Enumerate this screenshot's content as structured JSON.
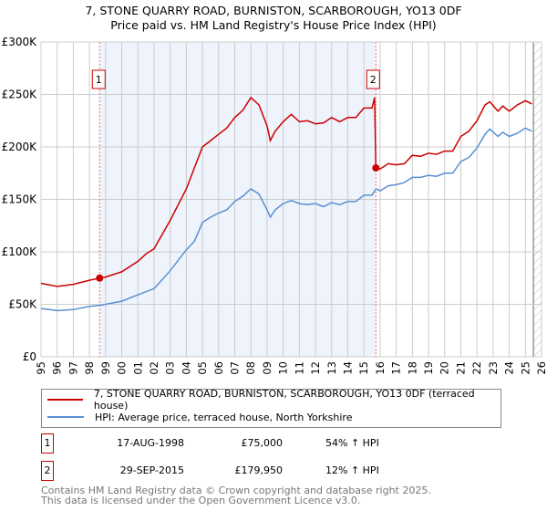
{
  "chart_data": {
    "type": "line",
    "title": "7, STONE QUARRY ROAD, BURNISTON, SCARBOROUGH, YO13 0DF",
    "subtitle": "Price paid vs. HM Land Registry's House Price Index (HPI)",
    "xlim": [
      1995,
      2026
    ],
    "ylim": [
      0,
      300000
    ],
    "x_ticks": [
      "1995",
      "1996",
      "1997",
      "1998",
      "1999",
      "2000",
      "2001",
      "2002",
      "2003",
      "2004",
      "2005",
      "2006",
      "2007",
      "2008",
      "2009",
      "2010",
      "2011",
      "2012",
      "2013",
      "2014",
      "2015",
      "2016",
      "2017",
      "2018",
      "2019",
      "2020",
      "2021",
      "2022",
      "2023",
      "2024",
      "2025",
      "2026"
    ],
    "y_ticks": [
      {
        "v": 0,
        "label": "£0"
      },
      {
        "v": 50000,
        "label": "£50K"
      },
      {
        "v": 100000,
        "label": "£100K"
      },
      {
        "v": 150000,
        "label": "£150K"
      },
      {
        "v": 200000,
        "label": "£200K"
      },
      {
        "v": 250000,
        "label": "£250K"
      },
      {
        "v": 300000,
        "label": "£300K"
      }
    ],
    "grid": true,
    "shaded_range": [
      1998.63,
      2015.74
    ],
    "hatched_from": 2025.5,
    "series": [
      {
        "name": "7, STONE QUARRY ROAD, BURNISTON, SCARBOROUGH, YO13 0DF (terraced house)",
        "color": "#cc0000",
        "x": [
          1995,
          1996,
          1997,
          1998,
          1998.63,
          1999,
          2000,
          2001,
          2001.5,
          2002,
          2003,
          2004,
          2004.5,
          2005,
          2005.5,
          2006,
          2006.5,
          2007,
          2007.5,
          2008,
          2008.5,
          2009,
          2009.2,
          2009.5,
          2010,
          2010.5,
          2011,
          2011.5,
          2012,
          2012.5,
          2013,
          2013.5,
          2014,
          2014.5,
          2015,
          2015.5,
          2015.66,
          2015.74,
          2016,
          2016.5,
          2017,
          2017.5,
          2018,
          2018.5,
          2019,
          2019.5,
          2020,
          2020.5,
          2021,
          2021.5,
          2022,
          2022.5,
          2022.8,
          2023.3,
          2023.6,
          2024,
          2024.5,
          2025,
          2025.4
        ],
        "y": [
          70000,
          67000,
          69000,
          73000,
          75000,
          76000,
          81000,
          91000,
          98000,
          103000,
          130000,
          160000,
          180000,
          200000,
          206000,
          212000,
          218000,
          228000,
          235000,
          247000,
          240000,
          220000,
          206000,
          215000,
          224000,
          231000,
          224000,
          225000,
          222000,
          223000,
          228000,
          224000,
          228000,
          228000,
          237000,
          237000,
          247000,
          179950,
          179000,
          184000,
          183000,
          184000,
          192000,
          191000,
          194000,
          193000,
          196000,
          196000,
          210000,
          215000,
          225000,
          240000,
          243000,
          234000,
          239000,
          234000,
          240000,
          244000,
          241000
        ]
      },
      {
        "name": "HPI: Average price, terraced house, North Yorkshire",
        "color": "#5b8fd1",
        "x": [
          1995,
          1996,
          1997,
          1998,
          1998.63,
          1999,
          2000,
          2001,
          2002,
          2003,
          2004,
          2004.5,
          2005,
          2005.5,
          2006,
          2006.5,
          2007,
          2007.5,
          2008,
          2008.5,
          2009,
          2009.2,
          2009.5,
          2010,
          2010.5,
          2011,
          2011.5,
          2012,
          2012.5,
          2013,
          2013.5,
          2014,
          2014.5,
          2015,
          2015.5,
          2015.75,
          2016,
          2016.5,
          2017,
          2017.5,
          2018,
          2018.5,
          2019,
          2019.5,
          2020,
          2020.5,
          2021,
          2021.5,
          2022,
          2022.5,
          2022.8,
          2023.3,
          2023.6,
          2024,
          2024.5,
          2025,
          2025.4
        ],
        "y": [
          46000,
          44000,
          45000,
          48000,
          49000,
          50000,
          53000,
          59000,
          65000,
          82000,
          102000,
          110000,
          128000,
          133000,
          137000,
          140000,
          148000,
          153000,
          160000,
          155000,
          140000,
          133000,
          140000,
          146000,
          149000,
          146000,
          145000,
          146000,
          143000,
          147000,
          145000,
          148000,
          148000,
          154000,
          154000,
          160000,
          158000,
          163000,
          164000,
          166000,
          171000,
          171000,
          173000,
          172000,
          175000,
          175000,
          186000,
          190000,
          199000,
          212000,
          217000,
          210000,
          214000,
          210000,
          213000,
          218000,
          215000
        ]
      }
    ],
    "sales": [
      {
        "label": "1",
        "x": 1998.63,
        "price": 75000,
        "date": "17-AUG-1998",
        "price_text": "£75,000",
        "hpi": "54% ↑ HPI"
      },
      {
        "label": "2",
        "x": 2015.74,
        "price": 179950,
        "date": "29-SEP-2015",
        "price_text": "£179,950",
        "hpi": "12% ↑ HPI"
      }
    ]
  },
  "title": {
    "line1": "7, STONE QUARRY ROAD, BURNISTON, SCARBOROUGH, YO13 0DF",
    "line2": "Price paid vs. HM Land Registry's House Price Index (HPI)"
  },
  "legend": {
    "red": "7, STONE QUARRY ROAD, BURNISTON, SCARBOROUGH, YO13 0DF (terraced house)",
    "blue": "HPI: Average price, terraced house, North Yorkshire"
  },
  "footer": {
    "line1": "Contains HM Land Registry data © Crown copyright and database right 2025.",
    "line2": "This data is licensed under the Open Government Licence v3.0."
  }
}
